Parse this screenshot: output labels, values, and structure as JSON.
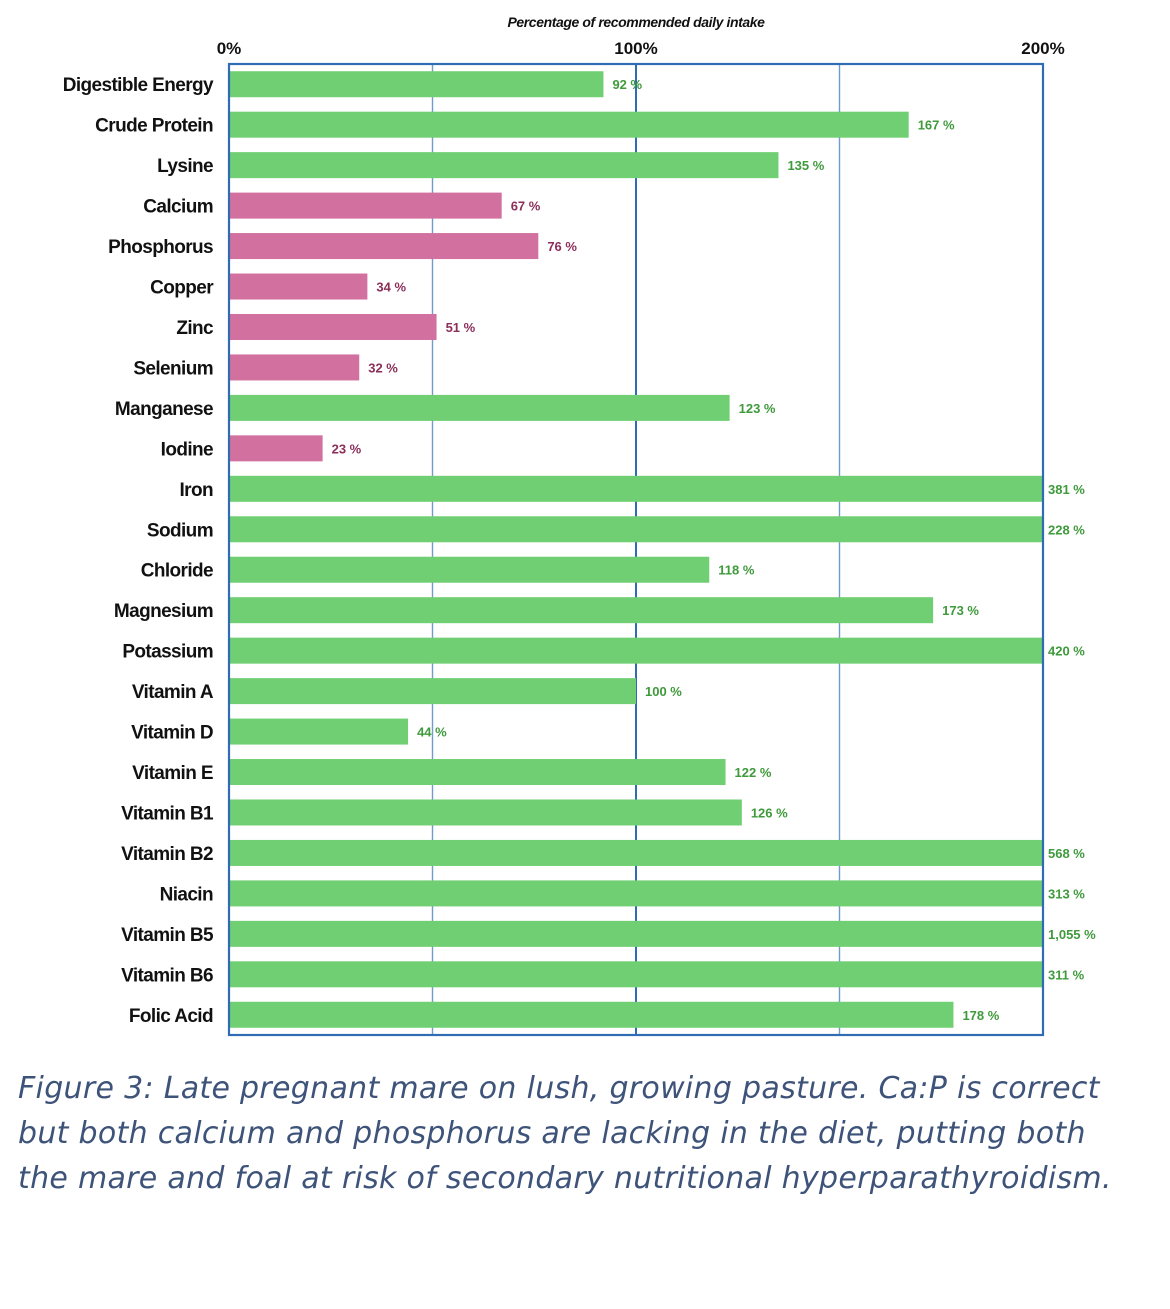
{
  "chart_data": {
    "type": "bar",
    "orientation": "horizontal",
    "title": "Percentage of recommended daily intake",
    "xlim": [
      0,
      200
    ],
    "x_ticks": [
      "0%",
      "100%",
      "200%"
    ],
    "grid": true,
    "categories": [
      "Digestible Energy",
      "Crude Protein",
      "Lysine",
      "Calcium",
      "Phosphorus",
      "Copper",
      "Zinc",
      "Selenium",
      "Manganese",
      "Iodine",
      "Iron",
      "Sodium",
      "Chloride",
      "Magnesium",
      "Potassium",
      "Vitamin A",
      "Vitamin D",
      "Vitamin E",
      "Vitamin B1",
      "Vitamin B2",
      "Niacin",
      "Vitamin B5",
      "Vitamin B6",
      "Folic Acid"
    ],
    "values": [
      92,
      167,
      135,
      67,
      76,
      34,
      51,
      32,
      123,
      23,
      381,
      228,
      118,
      173,
      420,
      100,
      44,
      122,
      126,
      568,
      313,
      1055,
      311,
      178
    ],
    "value_labels": [
      "92 %",
      "167 %",
      "135 %",
      "67 %",
      "76 %",
      "34 %",
      "51 %",
      "32 %",
      "123 %",
      "23 %",
      "381 %",
      "228 %",
      "118 %",
      "173 %",
      "420 %",
      "100 %",
      "44 %",
      "122 %",
      "126 %",
      "568 %",
      "313 %",
      "1,055 %",
      "311 %",
      "178 %"
    ],
    "status": [
      "adequate",
      "adequate",
      "adequate",
      "deficient",
      "deficient",
      "deficient",
      "deficient",
      "deficient",
      "adequate",
      "deficient",
      "adequate",
      "adequate",
      "adequate",
      "adequate",
      "adequate",
      "adequate",
      "adequate",
      "adequate",
      "adequate",
      "adequate",
      "adequate",
      "adequate",
      "adequate",
      "adequate"
    ],
    "colors": {
      "adequate": "#6fcf72",
      "deficient": "#d2709f",
      "adequate_label": "#3f9a3c",
      "deficient_label": "#8c2e5a",
      "frame": "#2f6cb3",
      "gridline": "#6e9ccc"
    }
  },
  "caption": "Figure 3: Late pregnant mare on lush, growing pasture. Ca:P is correct but both calcium and phosphorus are lacking in the diet, putting both the mare and foal at risk of secondary nutritional hyperparathyroidism."
}
